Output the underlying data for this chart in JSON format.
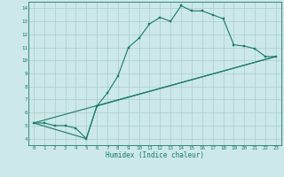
{
  "xlabel": "Humidex (Indice chaleur)",
  "ylabel": "",
  "xlim": [
    -0.5,
    23.5
  ],
  "ylim": [
    3.5,
    14.5
  ],
  "xticks": [
    0,
    1,
    2,
    3,
    4,
    5,
    6,
    7,
    8,
    9,
    10,
    11,
    12,
    13,
    14,
    15,
    16,
    17,
    18,
    19,
    20,
    21,
    22,
    23
  ],
  "yticks": [
    4,
    5,
    6,
    7,
    8,
    9,
    10,
    11,
    12,
    13,
    14
  ],
  "background_color": "#cce8e8",
  "grid_color": "#aacccc",
  "line_color": "#1a7a6a",
  "line1_x": [
    0,
    1,
    2,
    3,
    4,
    5,
    6,
    7,
    8,
    9,
    10,
    11,
    12,
    13,
    14,
    15,
    16,
    17,
    18,
    19,
    20,
    21,
    22,
    23
  ],
  "line1_y": [
    5.2,
    5.2,
    5.0,
    5.0,
    4.8,
    4.0,
    6.5,
    7.5,
    8.8,
    11.0,
    11.7,
    12.8,
    13.3,
    13.0,
    14.2,
    13.8,
    13.8,
    13.5,
    13.2,
    11.2,
    11.1,
    10.9,
    10.3,
    10.3
  ],
  "line2_x": [
    0,
    23
  ],
  "line2_y": [
    5.2,
    10.3
  ],
  "line3_x": [
    0,
    5,
    6,
    23
  ],
  "line3_y": [
    5.2,
    4.0,
    6.5,
    10.3
  ]
}
